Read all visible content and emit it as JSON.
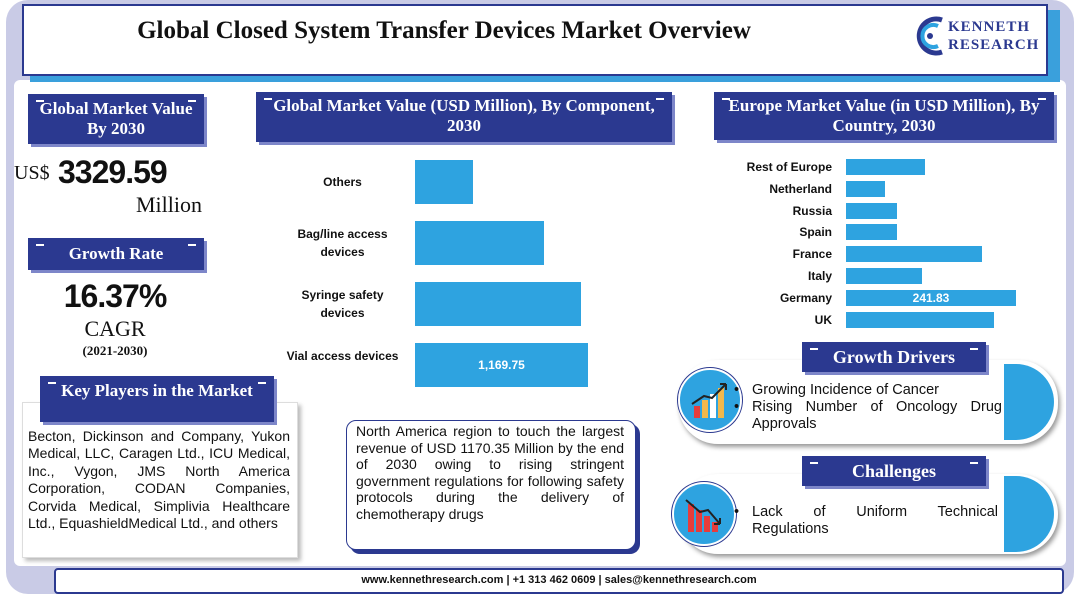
{
  "header": {
    "title": "Global Closed System Transfer Devices Market Overview",
    "logo_line1": "KENNETH",
    "logo_line2": "RESEARCH"
  },
  "market_value": {
    "heading": "Global Market Value By 2030",
    "prefix": "US$",
    "value": "3329.59",
    "unit": "Million"
  },
  "growth": {
    "heading": "Growth Rate",
    "value": "16.37%",
    "label": "CAGR",
    "period": "(2021-2030)"
  },
  "key_players": {
    "heading": "Key Players in the Market",
    "text": "Becton, Dickinson and Company, Yukon Medical, LLC, Caragen Ltd., ICU Medical, Inc., Vygon, JMS North America Corporation, CODAN Companies, Corvida Medical, Simplivia Healthcare Ltd., EquashieldMedical Ltd., and others"
  },
  "note": {
    "text": "North America region to touch the largest revenue of USD 1170.35 Million by the end of 2030 owing to rising stringent government regulations for following safety protocols during the delivery of chemotherapy drugs"
  },
  "growth_drivers": {
    "heading": "Growth Drivers",
    "items": [
      "Growing Incidence of Cancer",
      "Rising Number of Oncology Drug Approvals"
    ]
  },
  "challenges": {
    "heading": "Challenges",
    "items": [
      "Lack of Uniform Technical Regulations"
    ]
  },
  "footer": {
    "text": "www.kennethresearch.com | +1 313 462 0609 | sales@kennethresearch.com"
  },
  "colors": {
    "bar": "#2ea3e0",
    "navy": "#2b3990",
    "frame": "#c9cbe6"
  },
  "chart_data": [
    {
      "type": "bar",
      "orientation": "horizontal",
      "title": "Global Market Value (USD Million), By Component, 2030",
      "categories": [
        "Others",
        "Bag/line access devices",
        "Syringe safety devices",
        "Vial access devices"
      ],
      "values": [
        389,
        874,
        1122,
        1169.75
      ],
      "data_labels": [
        "",
        "",
        "",
        "1,169.75"
      ],
      "xlim": [
        0,
        2000
      ]
    },
    {
      "type": "bar",
      "orientation": "horizontal",
      "title": "Europe Market Value (in USD Million), By Country, 2030",
      "categories": [
        "Rest of Europe",
        "Netherland",
        "Russia",
        "Spain",
        "France",
        "Italy",
        "Germany",
        "UK"
      ],
      "values": [
        113,
        55,
        73,
        73,
        194,
        108,
        241.83,
        210
      ],
      "data_labels": [
        "",
        "",
        "",
        "",
        "",
        "",
        "241.83",
        ""
      ],
      "xlim": [
        0,
        350
      ]
    }
  ]
}
